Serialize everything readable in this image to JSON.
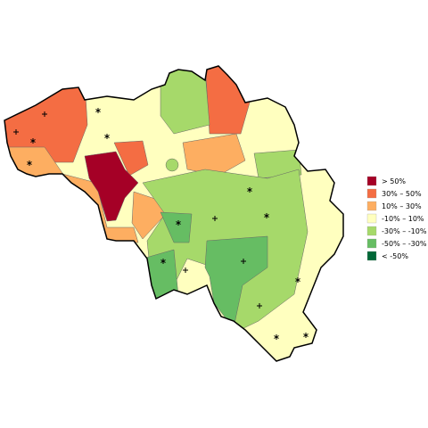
{
  "legend": {
    "items": [
      {
        "label": "> 50%",
        "color": "#a50026"
      },
      {
        "label": "30%  –  50%",
        "color": "#f46d43"
      },
      {
        "label": "10%  –  30%",
        "color": "#fdae61"
      },
      {
        "label": "-10%  –  10%",
        "color": "#ffffbf"
      },
      {
        "label": "-30%  –  -10%",
        "color": "#a6d96a"
      },
      {
        "label": "-50%  –  -30%",
        "color": "#66bd63"
      },
      {
        "label": "< -50%",
        "color": "#006837"
      }
    ]
  }
}
